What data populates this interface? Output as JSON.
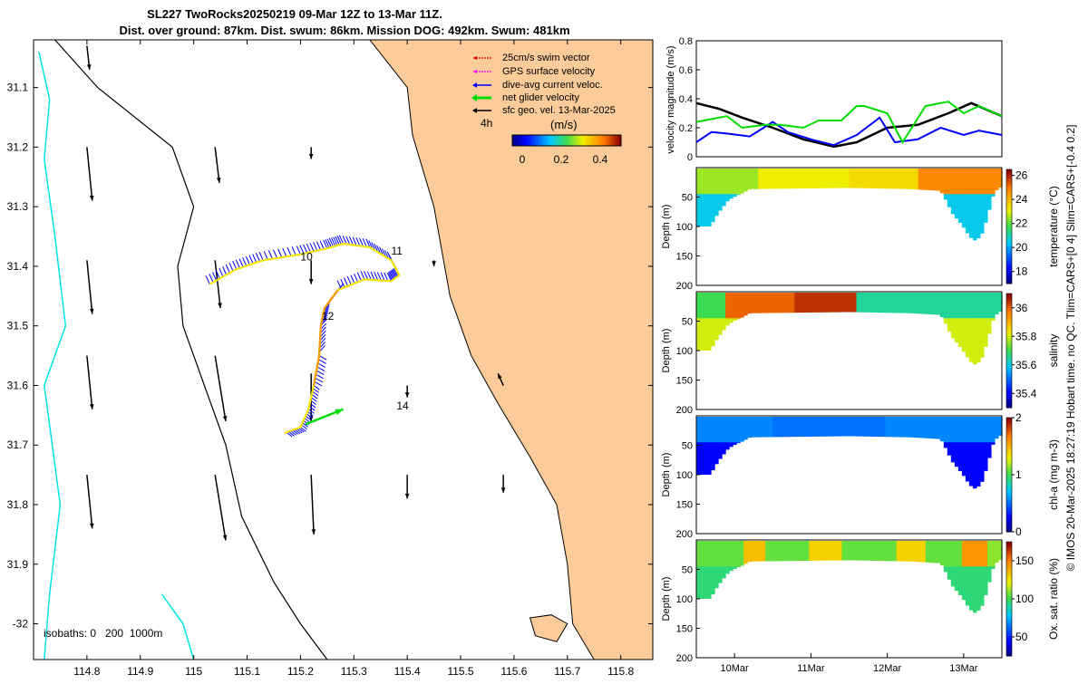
{
  "header": {
    "title_line1": "SL227 TwoRocks20250219 09-Mar 12Z to 13-Mar 11Z.",
    "title_line2": "Dist. over ground: 87km. Dist. swum: 86km. Mission DOG: 492km. Swum: 481km"
  },
  "side_note": "© IMOS 20-Mar-2025 18:27:19 Hobart time. no QC. Tlim=CARS+[0 4] Slim=CARS+[-0.4 0.2]",
  "colors": {
    "land": "#fbcb9a",
    "coast": "#000000",
    "isobath_200": "#000000",
    "isobath_1000": "#00e5e5",
    "swim_vector": "#e00000",
    "gps_velocity": "#ff00ff",
    "dive_avg_current": "#0000ff",
    "net_velocity": "#00dd00",
    "geo_velocity": "#000000",
    "track_yellow": "#f5e600",
    "track_orange": "#f59a00",
    "speed_black": "#000000",
    "speed_blue": "#0000ff",
    "speed_green": "#00dd00"
  },
  "chart_data": [
    {
      "type": "scatter",
      "name": "glider track map",
      "xlim": [
        114.7,
        115.86
      ],
      "ylim": [
        -32.06,
        -31.02
      ],
      "xticks": [
        114.8,
        114.9,
        115,
        115.1,
        115.2,
        115.3,
        115.4,
        115.5,
        115.6,
        115.7,
        115.8
      ],
      "xtick_labels": [
        "114.8",
        "114.9",
        "115",
        "115.1",
        "115.2",
        "115.3",
        "115.4",
        "115.5",
        "115.6",
        "115.7",
        "115.8"
      ],
      "yticks": [
        -31.1,
        -31.2,
        -31.3,
        -31.4,
        -31.5,
        -31.6,
        -31.7,
        -31.8,
        -31.9,
        -32
      ],
      "ytick_labels": [
        "31.1",
        "31.2",
        "31.3",
        "31.4",
        "31.5",
        "31.6",
        "31.7",
        "31.8",
        "31.9",
        "-32"
      ],
      "legend": [
        {
          "label": "25cm/s swim vector",
          "color": "#e00000"
        },
        {
          "label": "GPS surface velocity",
          "color": "#ff00ff"
        },
        {
          "label": "dive-avg current veloc.",
          "color": "#0000ff"
        },
        {
          "label": "net glider velocity",
          "color": "#00dd00"
        },
        {
          "label": "sfc geo. vel. 13-Mar-2025",
          "color": "#000000"
        }
      ],
      "legend_position": "top-right",
      "vector_scale_label": "4h",
      "colorbar": {
        "label": "(m/s)",
        "ticks": [
          "0",
          "0.2",
          "0.4"
        ],
        "range": [
          0,
          0.5
        ]
      },
      "isobath_label": "isobaths: 0   200  1000m",
      "day_labels": [
        {
          "text": "10",
          "lon": 115.2,
          "lat": -31.39
        },
        {
          "text": "11",
          "lon": 115.37,
          "lat": -31.38
        },
        {
          "text": "12",
          "lon": 115.24,
          "lat": -31.49
        },
        {
          "text": "14",
          "lon": 115.38,
          "lat": -31.64
        }
      ],
      "track": [
        [
          115.03,
          -31.43
        ],
        [
          115.08,
          -31.405
        ],
        [
          115.13,
          -31.39
        ],
        [
          115.2,
          -31.38
        ],
        [
          115.25,
          -31.37
        ],
        [
          115.28,
          -31.362
        ],
        [
          115.33,
          -31.368
        ],
        [
          115.37,
          -31.39
        ],
        [
          115.385,
          -31.415
        ],
        [
          115.37,
          -31.425
        ],
        [
          115.32,
          -31.422
        ],
        [
          115.27,
          -31.44
        ],
        [
          115.245,
          -31.47
        ],
        [
          115.238,
          -31.5
        ],
        [
          115.235,
          -31.55
        ],
        [
          115.225,
          -31.6
        ],
        [
          115.215,
          -31.64
        ],
        [
          115.2,
          -31.67
        ],
        [
          115.17,
          -31.68
        ]
      ],
      "net_velocity_arrow": {
        "from": [
          115.21,
          -31.665
        ],
        "to": [
          115.28,
          -31.64
        ]
      },
      "current_vectors": [
        [
          115.05,
          -31.42,
          -0.02,
          0.04
        ],
        [
          115.1,
          -31.4,
          -0.02,
          0.04
        ],
        [
          115.15,
          -31.39,
          -0.02,
          0.04
        ],
        [
          115.2,
          -31.38,
          -0.02,
          0.04
        ],
        [
          115.25,
          -31.37,
          -0.02,
          0.04
        ],
        [
          115.3,
          -31.365,
          -0.02,
          0.04
        ],
        [
          115.35,
          -31.375,
          -0.02,
          0.04
        ],
        [
          115.36,
          -31.41,
          -0.02,
          0.04
        ],
        [
          115.32,
          -31.42,
          -0.02,
          0.04
        ],
        [
          115.27,
          -31.44,
          -0.02,
          0.04
        ],
        [
          115.25,
          -31.47,
          -0.02,
          0.04
        ],
        [
          115.24,
          -31.52,
          0.03,
          0.03
        ],
        [
          115.235,
          -31.57,
          0.03,
          0.03
        ],
        [
          115.22,
          -31.62,
          0.03,
          0.03
        ],
        [
          115.21,
          -31.66,
          0.04,
          -0.02
        ],
        [
          115.18,
          -31.675,
          0.03,
          -0.02
        ]
      ],
      "geo_vectors": [
        [
          114.8,
          -31.03,
          0.005,
          -0.04
        ],
        [
          114.8,
          -31.2,
          0.01,
          -0.09
        ],
        [
          115.04,
          -31.2,
          0.008,
          -0.06
        ],
        [
          115.22,
          -31.2,
          0,
          -0.02
        ],
        [
          114.8,
          -31.39,
          0.01,
          -0.09
        ],
        [
          115.04,
          -31.39,
          0.01,
          -0.08
        ],
        [
          115.22,
          -31.39,
          0,
          -0.04
        ],
        [
          115.45,
          -31.39,
          0,
          -0.01
        ],
        [
          114.8,
          -31.55,
          0.01,
          -0.09
        ],
        [
          115.04,
          -31.55,
          0.02,
          -0.11
        ],
        [
          115.22,
          -31.58,
          0,
          -0.08
        ],
        [
          115.4,
          -31.6,
          0,
          -0.02
        ],
        [
          115.58,
          -31.6,
          -0.01,
          0.02
        ],
        [
          114.8,
          -31.75,
          0.01,
          -0.09
        ],
        [
          115.04,
          -31.75,
          0.02,
          -0.11
        ],
        [
          115.22,
          -31.75,
          0.005,
          -0.1
        ],
        [
          115.4,
          -31.75,
          0,
          -0.04
        ],
        [
          115.58,
          -31.75,
          0,
          -0.03
        ]
      ],
      "land_outline": [
        [
          115.33,
          -31.02
        ],
        [
          115.4,
          -31.1
        ],
        [
          115.41,
          -31.18
        ],
        [
          115.45,
          -31.3
        ],
        [
          115.48,
          -31.45
        ],
        [
          115.52,
          -31.55
        ],
        [
          115.57,
          -31.63
        ],
        [
          115.63,
          -31.72
        ],
        [
          115.68,
          -31.8
        ],
        [
          115.7,
          -31.9
        ],
        [
          115.71,
          -32
        ],
        [
          115.75,
          -32.06
        ],
        [
          115.86,
          -32.06
        ],
        [
          115.86,
          -31.02
        ]
      ],
      "island_outline": [
        [
          115.63,
          -31.99
        ],
        [
          115.67,
          -31.985
        ],
        [
          115.7,
          -32.0
        ],
        [
          115.68,
          -32.03
        ],
        [
          115.64,
          -32.02
        ]
      ],
      "isobath_200m": [
        [
          114.74,
          -31.02
        ],
        [
          114.82,
          -31.1
        ],
        [
          114.96,
          -31.2
        ],
        [
          115.0,
          -31.3
        ],
        [
          114.97,
          -31.4
        ],
        [
          114.98,
          -31.5
        ],
        [
          115.02,
          -31.6
        ],
        [
          115.06,
          -31.7
        ],
        [
          115.09,
          -31.82
        ],
        [
          115.15,
          -31.93
        ],
        [
          115.2,
          -32.0
        ],
        [
          115.25,
          -32.06
        ]
      ],
      "isobath_1000m_a": [
        [
          114.71,
          -31.04
        ],
        [
          114.73,
          -31.12
        ],
        [
          114.72,
          -31.22
        ],
        [
          114.74,
          -31.35
        ],
        [
          114.76,
          -31.5
        ],
        [
          114.72,
          -31.6
        ],
        [
          114.75,
          -31.8
        ],
        [
          114.73,
          -31.95
        ],
        [
          114.72,
          -32.06
        ]
      ],
      "isobath_1000m_b": [
        [
          114.94,
          -31.95
        ],
        [
          114.98,
          -32.0
        ],
        [
          115.0,
          -32.06
        ]
      ]
    },
    {
      "type": "line",
      "name": "velocity magnitude time series",
      "ylabel": "velocity magnitude (m/s)",
      "ylim": [
        0,
        0.8
      ],
      "yticks": [
        0,
        0.2,
        0.4,
        0.6,
        0.8
      ],
      "xlim": [
        9.5,
        13.5
      ],
      "series": [
        {
          "name": "sfc geo. vel.",
          "color": "#000000",
          "x": [
            9.5,
            9.8,
            10.1,
            10.5,
            10.9,
            11.3,
            11.6,
            12.0,
            12.4,
            12.8,
            13.1,
            13.5
          ],
          "values": [
            0.37,
            0.33,
            0.27,
            0.2,
            0.12,
            0.07,
            0.1,
            0.2,
            0.22,
            0.3,
            0.37,
            0.28
          ]
        },
        {
          "name": "dive-avg current veloc.",
          "color": "#0000ff",
          "x": [
            9.5,
            9.7,
            9.9,
            10.2,
            10.5,
            10.7,
            11.0,
            11.3,
            11.6,
            11.9,
            12.1,
            12.4,
            12.7,
            13.0,
            13.2,
            13.5
          ],
          "values": [
            0.1,
            0.17,
            0.16,
            0.14,
            0.24,
            0.17,
            0.12,
            0.08,
            0.15,
            0.27,
            0.1,
            0.12,
            0.2,
            0.15,
            0.18,
            0.15
          ]
        },
        {
          "name": "net glider velocity",
          "color": "#00dd00",
          "x": [
            9.5,
            9.6,
            9.9,
            10.1,
            10.4,
            10.6,
            10.9,
            11.1,
            11.4,
            11.6,
            11.7,
            12.0,
            12.2,
            12.5,
            12.8,
            13.0,
            13.2,
            13.5
          ],
          "values": [
            0.24,
            0.25,
            0.28,
            0.2,
            0.22,
            0.22,
            0.2,
            0.25,
            0.25,
            0.35,
            0.35,
            0.3,
            0.1,
            0.35,
            0.38,
            0.3,
            0.35,
            0.28
          ]
        }
      ]
    },
    {
      "type": "heatmap",
      "name": "temperature section",
      "ylabel": "Depth (m)",
      "colorbar_label": "temperature (°C)",
      "colorbar_ticks": [
        "18",
        "20",
        "22",
        "24",
        "26"
      ],
      "range": [
        17,
        26.5
      ],
      "ylim": [
        0,
        200
      ],
      "yticks": [
        50,
        100,
        150,
        200
      ],
      "tick_labels": [
        "50",
        "100",
        "150",
        "200"
      ],
      "segments": [
        {
          "t0": 9.5,
          "t1": 10.3,
          "v": 22.5
        },
        {
          "t0": 10.3,
          "t1": 11.5,
          "v": 23.2
        },
        {
          "t0": 11.5,
          "t1": 12.4,
          "v": 23.5
        },
        {
          "t0": 12.4,
          "t1": 13.5,
          "v": 24.8
        }
      ],
      "deep_value": 20.5
    },
    {
      "type": "heatmap",
      "name": "salinity section",
      "ylabel": "Depth (m)",
      "colorbar_label": "salinity",
      "colorbar_ticks": [
        "35.4",
        "35.6",
        "35.8",
        "36"
      ],
      "range": [
        35.3,
        36.1
      ],
      "ylim": [
        0,
        200
      ],
      "yticks": [
        50,
        100,
        150,
        200
      ],
      "tick_labels": [
        "50",
        "100",
        "150",
        "200"
      ],
      "segments": [
        {
          "t0": 9.5,
          "t1": 9.9,
          "v": 35.7
        },
        {
          "t0": 9.9,
          "t1": 10.8,
          "v": 36.0
        },
        {
          "t0": 10.8,
          "t1": 11.6,
          "v": 36.05
        },
        {
          "t0": 11.6,
          "t1": 12.6,
          "v": 35.65
        },
        {
          "t0": 12.6,
          "t1": 13.5,
          "v": 35.65
        }
      ],
      "deep_value": 35.8
    },
    {
      "type": "heatmap",
      "name": "chlorophyll-a section",
      "ylabel": "Depth (m)",
      "colorbar_label": "chl-a (mg m-3)",
      "colorbar_ticks": [
        "0",
        "1",
        "2"
      ],
      "range": [
        0,
        2
      ],
      "ylim": [
        0,
        200
      ],
      "yticks": [
        50,
        100,
        150,
        200
      ],
      "tick_labels": [
        "50",
        "100",
        "150",
        "200"
      ],
      "segments": [
        {
          "t0": 9.5,
          "t1": 10.5,
          "v": 0.55
        },
        {
          "t0": 10.5,
          "t1": 12.0,
          "v": 0.5
        },
        {
          "t0": 12.0,
          "t1": 13.5,
          "v": 0.55
        }
      ],
      "deep_value": 0.25
    },
    {
      "type": "heatmap",
      "name": "oxygen saturation section",
      "ylabel": "Depth (m)",
      "colorbar_label": "Ox. sat. ratio (%)",
      "colorbar_ticks": [
        "50",
        "100",
        "150"
      ],
      "range": [
        25,
        175
      ],
      "ylim": [
        0,
        200
      ],
      "yticks": [
        50,
        100,
        150,
        200
      ],
      "tick_labels": [
        "50",
        "100",
        "150",
        "200"
      ],
      "segments": [
        {
          "t0": 9.5,
          "t1": 10.1,
          "v": 105
        },
        {
          "t0": 10.1,
          "t1": 10.4,
          "v": 135
        },
        {
          "t0": 10.4,
          "t1": 11.0,
          "v": 105
        },
        {
          "t0": 11.0,
          "t1": 11.4,
          "v": 130
        },
        {
          "t0": 11.4,
          "t1": 12.1,
          "v": 105
        },
        {
          "t0": 12.1,
          "t1": 12.5,
          "v": 130
        },
        {
          "t0": 12.5,
          "t1": 13.0,
          "v": 105
        },
        {
          "t0": 13.0,
          "t1": 13.3,
          "v": 145
        },
        {
          "t0": 13.3,
          "t1": 13.5,
          "v": 110
        }
      ],
      "deep_value": 95
    }
  ],
  "time_axis": {
    "xlim": [
      9.5,
      13.5
    ],
    "ticks": [
      10,
      11,
      12,
      13
    ],
    "labels": [
      "10Mar",
      "11Mar",
      "12Mar",
      "13Mar"
    ]
  },
  "section_bottom_profile": [
    [
      9.5,
      100
    ],
    [
      9.68,
      100
    ],
    [
      9.78,
      78
    ],
    [
      9.92,
      55
    ],
    [
      10.2,
      35
    ],
    [
      11.5,
      33
    ],
    [
      12.3,
      35
    ],
    [
      12.7,
      38
    ],
    [
      12.85,
      78
    ],
    [
      12.98,
      98
    ],
    [
      13.08,
      118
    ],
    [
      13.16,
      125
    ],
    [
      13.25,
      110
    ],
    [
      13.32,
      78
    ],
    [
      13.4,
      40
    ],
    [
      13.5,
      30
    ]
  ]
}
